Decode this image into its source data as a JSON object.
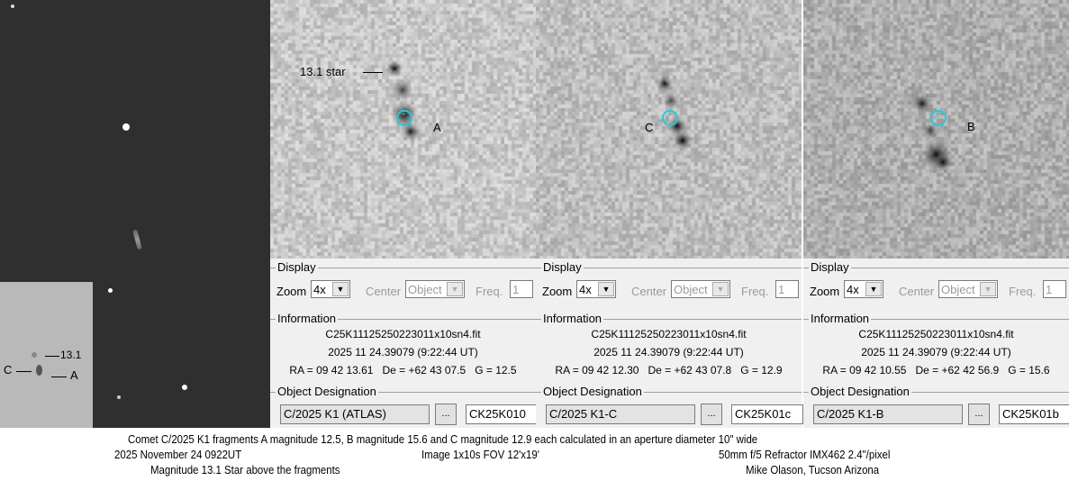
{
  "inset": {
    "label_star": "13.1",
    "label_c": "C",
    "label_a": "A"
  },
  "panels": [
    {
      "annotation": "A",
      "star_label": "13.1 star",
      "display": "Display",
      "zoom_label": "Zoom",
      "zoom_value": "4x",
      "center_label": "Center",
      "center_value": "Object",
      "freq_label": "Freq.",
      "freq_value": "1",
      "information": "Information",
      "filename": "C25K11125250223011x10sn4.fit",
      "datetime": "2025 11 24.39079 (9:22:44 UT)",
      "coords": "RA = 09 42 13.61   De = +62 43 07.5   G = 12.5",
      "object_designation": "Object Designation",
      "designation": "C/2025 K1 (ATLAS)",
      "browse": "...",
      "code": "CK25K010"
    },
    {
      "annotation": "C",
      "display": "Display",
      "zoom_label": "Zoom",
      "zoom_value": "4x",
      "center_label": "Center",
      "center_value": "Object",
      "freq_label": "Freq.",
      "freq_value": "1",
      "information": "Information",
      "filename": "C25K11125250223011x10sn4.fit",
      "datetime": "2025 11 24.39079 (9:22:44 UT)",
      "coords": "RA = 09 42 12.30   De = +62 43 07.8   G = 12.9",
      "object_designation": "Object Designation",
      "designation": "C/2025 K1-C",
      "browse": "...",
      "code": "CK25K01c"
    },
    {
      "annotation": "B",
      "display": "Display",
      "zoom_label": "Zoom",
      "zoom_value": "4x",
      "center_label": "Center",
      "center_value": "Object",
      "freq_label": "Freq.",
      "freq_value": "1",
      "information": "Information",
      "filename": "C25K11125250223011x10sn4.fit",
      "datetime": "2025 11 24.39079 (9:22:44 UT)",
      "coords": "RA = 09 42 10.55   De = +62 42 56.9   G = 15.6",
      "object_designation": "Object Designation",
      "designation": "C/2025 K1-B",
      "browse": "...",
      "code": "CK25K01b"
    }
  ],
  "caption": {
    "line1": "Comet C/2025 K1 fragments A magnitude 12.5, B magnitude 15.6 and C magnitude 12.9 each calculated in an aperture diameter 10\" wide",
    "date": "2025 November 24  0922UT",
    "image": "Image 1x10s  FOV 12'x19'",
    "scope": "50mm f/5 Refractor  IMX462  2.4\"/pixel",
    "star": "Magnitude 13.1 Star above the fragments",
    "author": "Mike Olason, Tucson Arizona"
  },
  "colors": {
    "aperture_circle": "#2bc7d6"
  }
}
